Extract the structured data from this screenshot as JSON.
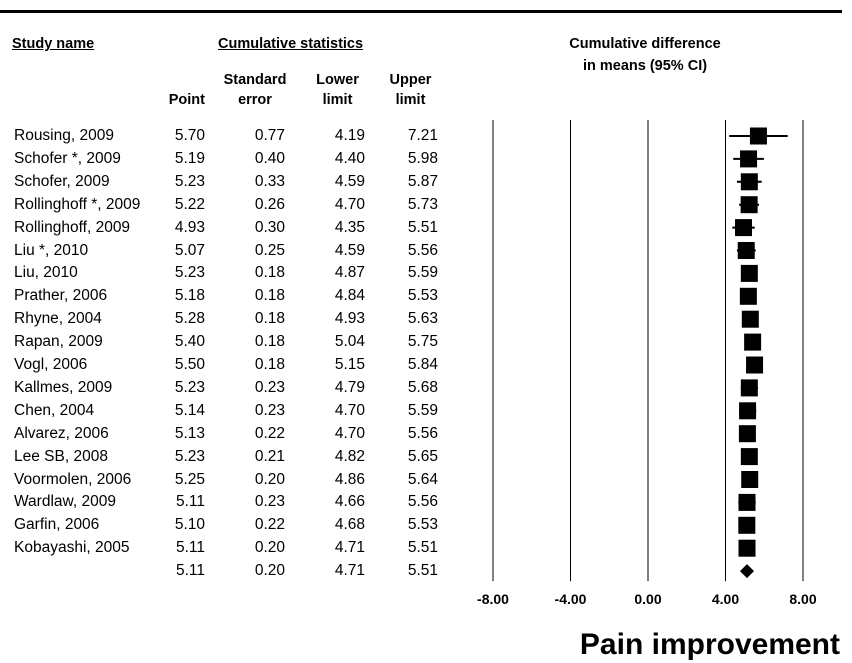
{
  "header": {
    "study_name": "Study name",
    "cumulative_statistics": "Cumulative statistics",
    "plot_title_line1": "Cumulative difference",
    "plot_title_line2": "in means (95% CI)",
    "col_point": "Point",
    "col_se_line1": "Standard",
    "col_se_line2": "error",
    "col_lower_line1": "Lower",
    "col_lower_line2": "limit",
    "col_upper_line1": "Upper",
    "col_upper_line2": "limit"
  },
  "footer_label": "Pain improvement",
  "chart_data": {
    "type": "forest",
    "xlim": [
      -8,
      8
    ],
    "x_ticks": [
      "-8.00",
      "-4.00",
      "0.00",
      "4.00",
      "8.00"
    ],
    "x_tick_values": [
      -8,
      -4,
      0,
      4,
      8
    ],
    "grid": "vertical lines at ticks",
    "rows": [
      {
        "study": "Rousing, 2009",
        "point": "5.70",
        "se": "0.77",
        "lower": "4.19",
        "upper": "7.21"
      },
      {
        "study": "Schofer *, 2009",
        "point": "5.19",
        "se": "0.40",
        "lower": "4.40",
        "upper": "5.98"
      },
      {
        "study": "Schofer, 2009",
        "point": "5.23",
        "se": "0.33",
        "lower": "4.59",
        "upper": "5.87"
      },
      {
        "study": "Rollinghoff *, 2009",
        "point": "5.22",
        "se": "0.26",
        "lower": "4.70",
        "upper": "5.73"
      },
      {
        "study": "Rollinghoff, 2009",
        "point": "4.93",
        "se": "0.30",
        "lower": "4.35",
        "upper": "5.51"
      },
      {
        "study": "Liu *, 2010",
        "point": "5.07",
        "se": "0.25",
        "lower": "4.59",
        "upper": "5.56"
      },
      {
        "study": "Liu, 2010",
        "point": "5.23",
        "se": "0.18",
        "lower": "4.87",
        "upper": "5.59"
      },
      {
        "study": "Prather, 2006",
        "point": "5.18",
        "se": "0.18",
        "lower": "4.84",
        "upper": "5.53"
      },
      {
        "study": "Rhyne, 2004",
        "point": "5.28",
        "se": "0.18",
        "lower": "4.93",
        "upper": "5.63"
      },
      {
        "study": "Rapan, 2009",
        "point": "5.40",
        "se": "0.18",
        "lower": "5.04",
        "upper": "5.75"
      },
      {
        "study": "Vogl, 2006",
        "point": "5.50",
        "se": "0.18",
        "lower": "5.15",
        "upper": "5.84"
      },
      {
        "study": "Kallmes, 2009",
        "point": "5.23",
        "se": "0.23",
        "lower": "4.79",
        "upper": "5.68"
      },
      {
        "study": "Chen, 2004",
        "point": "5.14",
        "se": "0.23",
        "lower": "4.70",
        "upper": "5.59"
      },
      {
        "study": "Alvarez, 2006",
        "point": "5.13",
        "se": "0.22",
        "lower": "4.70",
        "upper": "5.56"
      },
      {
        "study": "Lee SB, 2008",
        "point": "5.23",
        "se": "0.21",
        "lower": "4.82",
        "upper": "5.65"
      },
      {
        "study": "Voormolen, 2006",
        "point": "5.25",
        "se": "0.20",
        "lower": "4.86",
        "upper": "5.64"
      },
      {
        "study": "Wardlaw, 2009",
        "point": "5.11",
        "se": "0.23",
        "lower": "4.66",
        "upper": "5.56"
      },
      {
        "study": "Garfin, 2006",
        "point": "5.10",
        "se": "0.22",
        "lower": "4.68",
        "upper": "5.53"
      },
      {
        "study": "Kobayashi, 2005",
        "point": "5.11",
        "se": "0.20",
        "lower": "4.71",
        "upper": "5.51"
      }
    ],
    "summary": {
      "study": "",
      "point": "5.11",
      "se": "0.20",
      "lower": "4.71",
      "upper": "5.51"
    }
  }
}
